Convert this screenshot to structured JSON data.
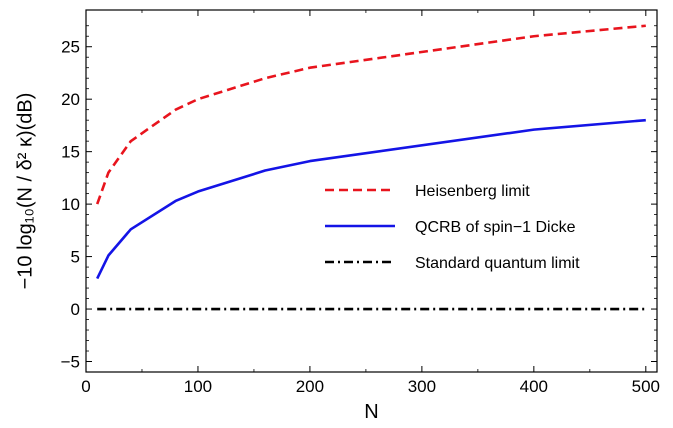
{
  "chart_data": {
    "type": "line",
    "xlabel": "N",
    "ylabel": "−10 log₁₀(N / δ² κ)(dB)",
    "xlim": [
      0,
      510
    ],
    "ylim": [
      -6,
      28.5
    ],
    "x_ticks": [
      0,
      100,
      200,
      300,
      400,
      500
    ],
    "x_tick_labels": [
      "0",
      "100",
      "200",
      "300",
      "400",
      "500"
    ],
    "y_ticks": [
      -5,
      0,
      5,
      10,
      15,
      20,
      25
    ],
    "y_tick_labels": [
      "−5",
      "0",
      "5",
      "10",
      "15",
      "20",
      "25"
    ],
    "grid": false,
    "legend_position": "right-middle",
    "series": [
      {
        "name": "Heisenberg limit",
        "color": "#e8141d",
        "style": "dashed",
        "x": [
          10,
          20,
          40,
          80,
          100,
          160,
          200,
          400,
          500
        ],
        "y": [
          10.0,
          13.0,
          16.0,
          19.0,
          20.0,
          22.0,
          23.0,
          26.0,
          27.0
        ]
      },
      {
        "name": "QCRB of spin−1 Dicke",
        "color": "#1414e6",
        "style": "solid",
        "x": [
          10,
          20,
          40,
          80,
          100,
          160,
          200,
          400,
          500
        ],
        "y": [
          2.9,
          5.1,
          7.6,
          10.3,
          11.2,
          13.2,
          14.1,
          17.1,
          18.0
        ]
      },
      {
        "name": "Standard quantum limit",
        "color": "#000000",
        "style": "dashdot",
        "x": [
          10,
          500
        ],
        "y": [
          0,
          0
        ]
      }
    ]
  }
}
